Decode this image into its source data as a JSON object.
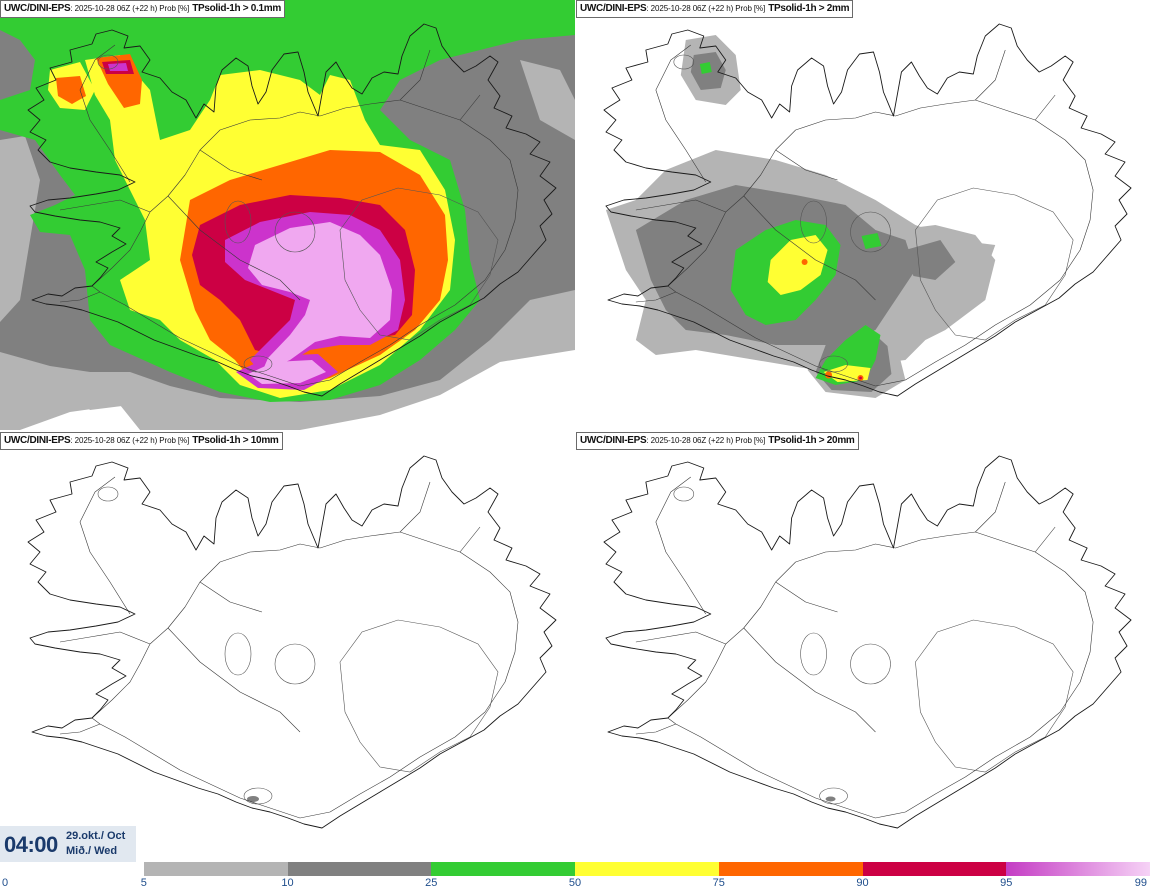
{
  "panels": [
    {
      "model": "UWC/DINI-EPS",
      "run_info": ": 2025-10-28 06Z (+22 h) Prob [%]",
      "threshold": "TPsolid-1h > 0.1mm"
    },
    {
      "model": "UWC/DINI-EPS",
      "run_info": ": 2025-10-28 06Z (+22 h) Prob [%]",
      "threshold": "TPsolid-1h > 2mm"
    },
    {
      "model": "UWC/DINI-EPS",
      "run_info": ": 2025-10-28 06Z (+22 h) Prob [%]",
      "threshold": "TPsolid-1h > 10mm"
    },
    {
      "model": "UWC/DINI-EPS",
      "run_info": ": 2025-10-28 06Z (+22 h) Prob [%]",
      "threshold": "TPsolid-1h > 20mm"
    }
  ],
  "valid_time": {
    "time": "04:00",
    "date": "29.okt./ Oct",
    "weekday": "Mið./ Wed"
  },
  "colorbar": {
    "ticks": [
      "0",
      "5",
      "10",
      "25",
      "50",
      "75",
      "90",
      "95",
      "99"
    ],
    "bins": [
      {
        "from": 0,
        "to": 5,
        "color": "none"
      },
      {
        "from": 5,
        "to": 10,
        "color": "#b4b4b4"
      },
      {
        "from": 10,
        "to": 25,
        "color": "#808080"
      },
      {
        "from": 25,
        "to": 50,
        "color": "#33cc33"
      },
      {
        "from": 50,
        "to": 75,
        "color": "#ffff33"
      },
      {
        "from": 75,
        "to": 90,
        "color": "#ff6600"
      },
      {
        "from": 90,
        "to": 95,
        "color": "#cc0044"
      },
      {
        "from": 95,
        "to": 99,
        "color": "#c43cc4",
        "color_end": "#f6d2f6"
      }
    ],
    "label_color": "#1f4e8c"
  }
}
